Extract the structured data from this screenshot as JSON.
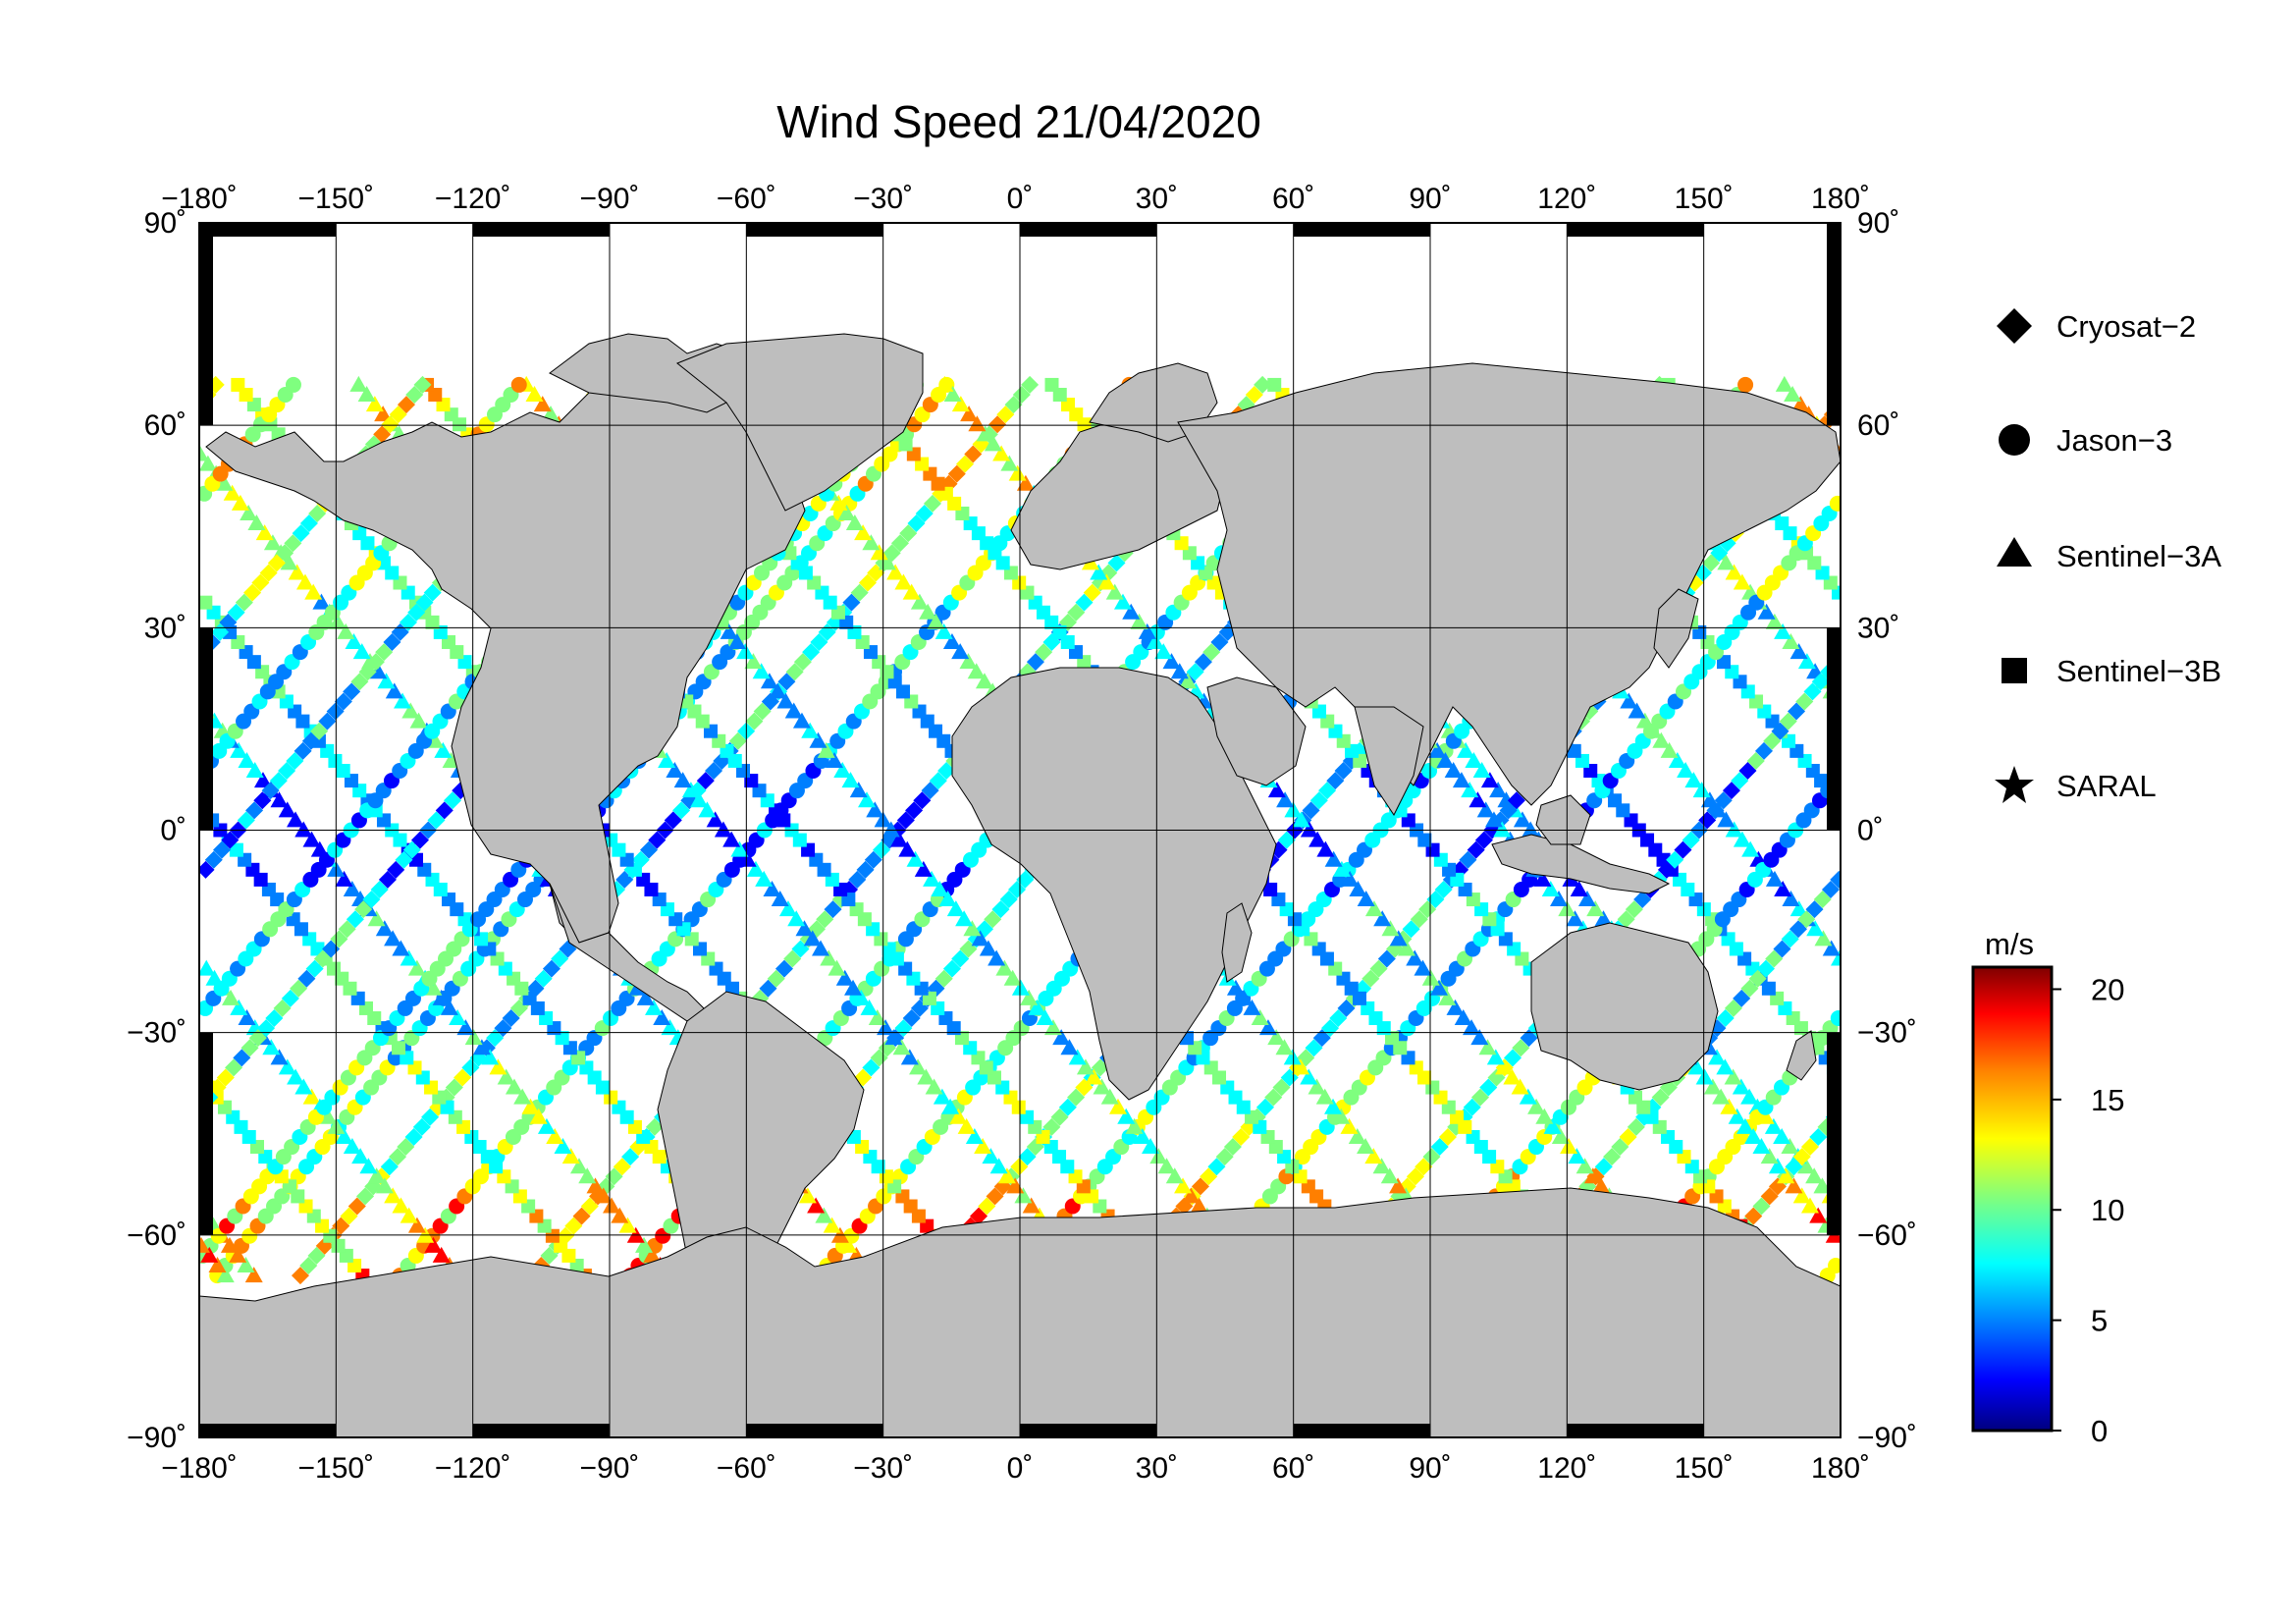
{
  "title": "Wind Speed 21/04/2020",
  "map": {
    "lon_range": [
      -180,
      180
    ],
    "lat_range": [
      -90,
      90
    ],
    "lon_ticks": [
      "−180˚",
      "−150˚",
      "−120˚",
      "−90˚",
      "−60˚",
      "−30˚",
      "0˚",
      "30˚",
      "60˚",
      "90˚",
      "120˚",
      "150˚",
      "180˚"
    ],
    "lat_ticks": [
      "90˚",
      "60˚",
      "30˚",
      "0˚",
      "−30˚",
      "−60˚",
      "−90˚"
    ],
    "land_color": "#bebebe",
    "ocean_color": "#ffffff"
  },
  "legend": {
    "items": [
      {
        "label": "Cryosat−2",
        "icon": "diamond-icon"
      },
      {
        "label": "Jason−3",
        "icon": "circle-icon"
      },
      {
        "label": "Sentinel−3A",
        "icon": "triangle-icon"
      },
      {
        "label": "Sentinel−3B",
        "icon": "square-icon"
      },
      {
        "label": "SARAL",
        "icon": "star-icon"
      }
    ]
  },
  "colorbar": {
    "unit": "m/s",
    "range": [
      0,
      21
    ],
    "tick_labels": [
      "20",
      "15",
      "10",
      "5",
      "0"
    ],
    "tick_values": [
      20,
      15,
      10,
      5,
      0
    ],
    "colors": [
      "#00007f",
      "#0000ff",
      "#007fff",
      "#00ffff",
      "#7fff7f",
      "#ffff00",
      "#ff7f00",
      "#ff0000",
      "#7f0000"
    ]
  }
}
